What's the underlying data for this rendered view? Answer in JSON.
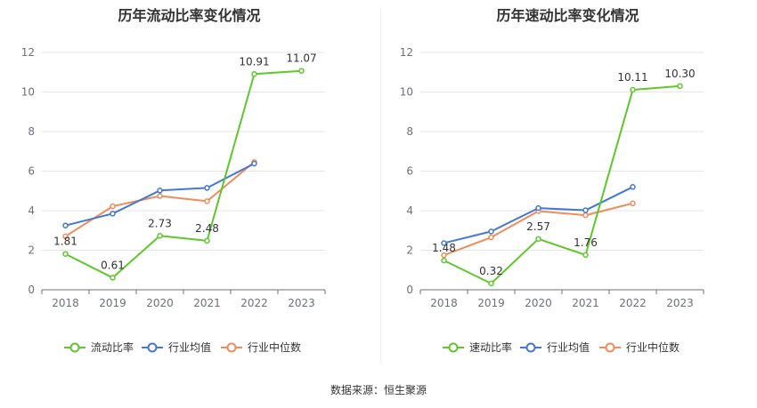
{
  "colors": {
    "main": "#5fc62c",
    "avg": "#4477d5",
    "median": "#ef8c5b",
    "grid": "#e6e6e6",
    "axis": "#6e7079"
  },
  "source_text": "数据来源：恒生聚源",
  "chart_data": [
    {
      "type": "line",
      "title": "历年流动比率变化情况",
      "categories": [
        "2018",
        "2019",
        "2020",
        "2021",
        "2022",
        "2023"
      ],
      "ylim": [
        0,
        12
      ],
      "yticks": [
        "0",
        "2",
        "4",
        "6",
        "8",
        "10",
        "12"
      ],
      "legend_position": "bottom",
      "series": [
        {
          "name": "流动比率",
          "values": [
            1.81,
            0.61,
            2.73,
            2.48,
            10.91,
            11.07
          ],
          "labels": [
            "1.81",
            "0.61",
            "2.73",
            "2.48",
            "10.91",
            "11.07"
          ]
        },
        {
          "name": "行业均值",
          "values": [
            3.25,
            3.85,
            5.02,
            5.15,
            6.38,
            null
          ]
        },
        {
          "name": "行业中位数",
          "values": [
            2.7,
            4.22,
            4.74,
            4.48,
            6.46,
            null
          ]
        }
      ]
    },
    {
      "type": "line",
      "title": "历年速动比率变化情况",
      "categories": [
        "2018",
        "2019",
        "2020",
        "2021",
        "2022",
        "2023"
      ],
      "ylim": [
        0,
        12
      ],
      "yticks": [
        "0",
        "2",
        "4",
        "6",
        "8",
        "10",
        "12"
      ],
      "legend_position": "bottom",
      "series": [
        {
          "name": "速动比率",
          "values": [
            1.48,
            0.32,
            2.57,
            1.76,
            10.11,
            10.3
          ],
          "labels": [
            "1.48",
            "0.32",
            "2.57",
            "1.76",
            "10.11",
            "10.30"
          ]
        },
        {
          "name": "行业均值",
          "values": [
            2.36,
            2.95,
            4.13,
            4.02,
            5.2,
            null
          ]
        },
        {
          "name": "行业中位数",
          "values": [
            1.75,
            2.65,
            3.98,
            3.77,
            4.37,
            null
          ]
        }
      ]
    }
  ]
}
